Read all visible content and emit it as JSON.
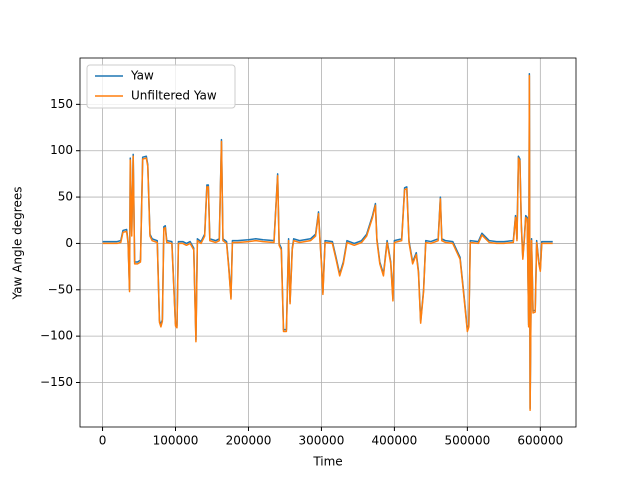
{
  "chart_data": {
    "type": "line",
    "xlabel": "Time",
    "ylabel": "Yaw Angle degrees",
    "x": [
      0,
      20000,
      25000,
      28000,
      33000,
      35000,
      37000,
      38000,
      40000,
      42000,
      44000,
      48000,
      52000,
      55000,
      60000,
      62000,
      65000,
      68000,
      75000,
      78000,
      80000,
      82000,
      84000,
      86000,
      88000,
      95000,
      100000,
      102000,
      104000,
      110000,
      115000,
      120000,
      125000,
      128000,
      130000,
      135000,
      140000,
      143000,
      145000,
      147000,
      155000,
      160000,
      163000,
      165000,
      170000,
      173000,
      176000,
      178000,
      185000,
      200000,
      210000,
      220000,
      235000,
      240000,
      242000,
      245000,
      248000,
      252000,
      255000,
      257000,
      260000,
      262000,
      270000,
      285000,
      292000,
      296000,
      298000,
      300000,
      302000,
      305000,
      315000,
      320000,
      325000,
      330000,
      335000,
      345000,
      355000,
      362000,
      370000,
      374000,
      376000,
      380000,
      385000,
      390000,
      395000,
      398000,
      400000,
      410000,
      414000,
      417000,
      420000,
      425000,
      430000,
      433000,
      436000,
      440000,
      443000,
      450000,
      460000,
      463000,
      465000,
      470000,
      480000,
      490000,
      495000,
      500000,
      502000,
      504000,
      515000,
      520000,
      530000,
      540000,
      550000,
      563000,
      566000,
      568000,
      570000,
      572000,
      574000,
      576000,
      578000,
      580000,
      582000,
      584000,
      585000,
      586000,
      588000,
      590000,
      593000,
      595000,
      598000,
      600000,
      602000,
      610000,
      617000
    ],
    "series": [
      {
        "name": "Yaw",
        "color": "#1f77b4",
        "values": [
          2,
          2,
          3,
          14,
          15,
          2,
          -50,
          92,
          10,
          96,
          -20,
          -20,
          -18,
          93,
          94,
          85,
          10,
          5,
          3,
          -83,
          -88,
          -82,
          18,
          19,
          3,
          2,
          -87,
          -89,
          2,
          2,
          0,
          2,
          -5,
          -104,
          5,
          2,
          10,
          63,
          63,
          5,
          3,
          5,
          112,
          5,
          2,
          -25,
          -58,
          3,
          3,
          4,
          5,
          4,
          3,
          75,
          0,
          -5,
          -93,
          -93,
          5,
          -63,
          -5,
          5,
          3,
          5,
          10,
          34,
          5,
          -20,
          -53,
          3,
          2,
          -15,
          -33,
          -20,
          3,
          0,
          3,
          10,
          30,
          43,
          5,
          -20,
          -33,
          3,
          -20,
          -60,
          3,
          5,
          60,
          61,
          3,
          -20,
          -10,
          -30,
          -84,
          -50,
          3,
          2,
          5,
          50,
          5,
          3,
          2,
          -15,
          -53,
          -93,
          -88,
          3,
          2,
          11,
          3,
          2,
          2,
          3,
          30,
          5,
          94,
          91,
          20,
          -15,
          5,
          30,
          28,
          -88,
          183,
          -178,
          5,
          -73,
          -72,
          3,
          -20,
          -28,
          2,
          2,
          2
        ]
      },
      {
        "name": "Unfiltered Yaw",
        "color": "#ff7f0e",
        "values": [
          0,
          0,
          1,
          12,
          13,
          0,
          -52,
          90,
          8,
          94,
          -22,
          -22,
          -20,
          91,
          92,
          83,
          8,
          3,
          1,
          -85,
          -90,
          -84,
          16,
          17,
          1,
          0,
          -89,
          -91,
          0,
          0,
          -2,
          0,
          -7,
          -106,
          3,
          0,
          8,
          61,
          61,
          3,
          1,
          3,
          110,
          3,
          0,
          -27,
          -60,
          1,
          1,
          2,
          3,
          2,
          1,
          73,
          -2,
          -7,
          -95,
          -95,
          3,
          -65,
          -7,
          3,
          1,
          3,
          8,
          32,
          3,
          -22,
          -55,
          1,
          0,
          -17,
          -35,
          -22,
          1,
          -2,
          1,
          8,
          28,
          41,
          3,
          -22,
          -35,
          1,
          -22,
          -62,
          1,
          3,
          58,
          59,
          1,
          -22,
          -12,
          -32,
          -86,
          -52,
          1,
          0,
          3,
          48,
          3,
          1,
          0,
          -17,
          -55,
          -95,
          -90,
          1,
          0,
          9,
          1,
          0,
          0,
          1,
          28,
          3,
          92,
          89,
          18,
          -17,
          3,
          28,
          26,
          -90,
          181,
          -180,
          3,
          -75,
          -74,
          1,
          -22,
          -30,
          0,
          0,
          0
        ]
      }
    ],
    "xlim": [
      -30900,
      648900
    ],
    "ylim": [
      -198,
      200
    ],
    "xticks": [
      0,
      100000,
      200000,
      300000,
      400000,
      500000,
      600000
    ],
    "yticks": [
      {
        "value": -150,
        "label": "−150"
      },
      {
        "value": -100,
        "label": "−100"
      },
      {
        "value": -50,
        "label": "−50"
      },
      0,
      50,
      100,
      150
    ],
    "grid": true,
    "legend": "upper-left"
  }
}
